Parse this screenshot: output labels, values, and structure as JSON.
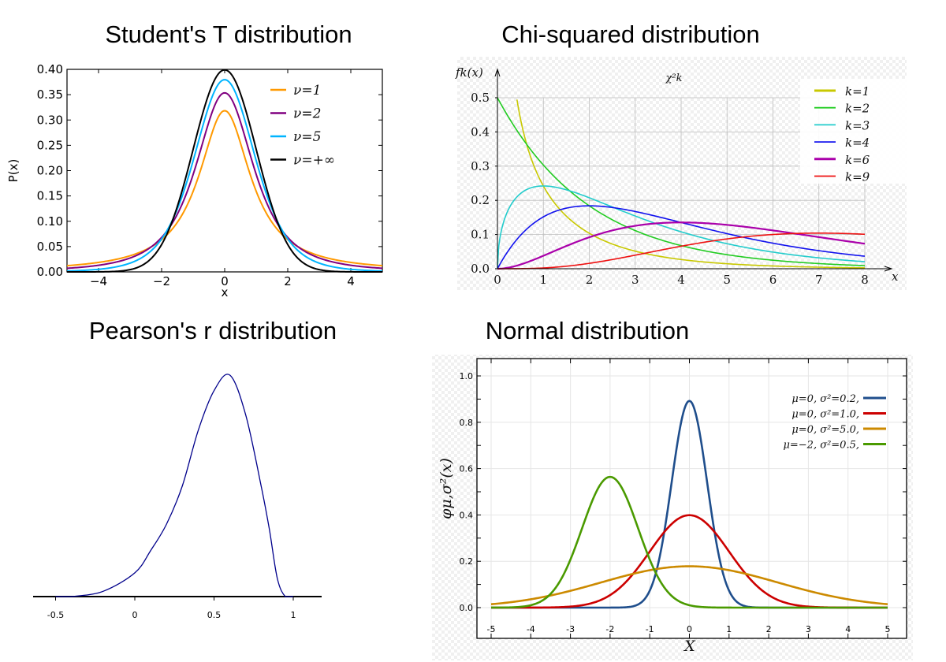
{
  "chart_data": [
    {
      "type": "line",
      "title": "Student's T distribution",
      "xlabel": "x",
      "ylabel": "P(x)",
      "xlim": [
        -5,
        5
      ],
      "ylim": [
        0,
        0.4
      ],
      "xticks": [
        "−4",
        "−2",
        "0",
        "2",
        "4"
      ],
      "yticks": [
        "0.00",
        "0.05",
        "0.10",
        "0.15",
        "0.20",
        "0.25",
        "0.30",
        "0.35",
        "0.40"
      ],
      "legend_position": "top-right",
      "series": [
        {
          "name": "ν=1",
          "nu": 1,
          "color": "#ff9900"
        },
        {
          "name": "ν=2",
          "nu": 2,
          "color": "#800080"
        },
        {
          "name": "ν=5",
          "nu": 5,
          "color": "#00b4ff"
        },
        {
          "name": "ν=+∞",
          "nu": "inf",
          "color": "#000000"
        }
      ]
    },
    {
      "type": "line",
      "title": "Chi-squared distribution",
      "inner_title": "χ²k",
      "xlabel": "x",
      "ylabel": "fk(x)",
      "xlim": [
        0,
        8
      ],
      "ylim": [
        0,
        0.5
      ],
      "xticks": [
        "0",
        "1",
        "2",
        "3",
        "4",
        "5",
        "6",
        "7",
        "8"
      ],
      "yticks": [
        "0.0",
        "0.1",
        "0.2",
        "0.3",
        "0.4",
        "0.5"
      ],
      "grid": true,
      "legend_position": "top-right",
      "series": [
        {
          "name": "k=1",
          "k": 1,
          "color": "#c8c800"
        },
        {
          "name": "k=2",
          "k": 2,
          "color": "#22cc22"
        },
        {
          "name": "k=3",
          "k": 3,
          "color": "#22cccc"
        },
        {
          "name": "k=4",
          "k": 4,
          "color": "#1111ee"
        },
        {
          "name": "k=6",
          "k": 6,
          "color": "#aa00aa"
        },
        {
          "name": "k=9",
          "k": 9,
          "color": "#ee1111"
        }
      ]
    },
    {
      "type": "line",
      "title": "Pearson's r distribution",
      "xlim": [
        -0.6,
        1.18
      ],
      "xticks": [
        "-0.5",
        "0",
        "0.5",
        "1"
      ],
      "color": "#00008b",
      "x": [
        -0.5,
        -0.4,
        -0.2,
        0,
        0.1,
        0.2,
        0.3,
        0.4,
        0.5,
        0.6,
        0.7,
        0.8,
        0.85,
        0.9,
        0.95,
        1.0
      ],
      "y_relative": [
        0,
        0,
        0.024,
        0.107,
        0.208,
        0.327,
        0.5,
        0.75,
        0.93,
        1.0,
        0.82,
        0.49,
        0.3,
        0.08,
        0,
        0
      ]
    },
    {
      "type": "line",
      "title": "Normal distribution",
      "xlabel": "X",
      "ylabel": "φμ,σ²(x)",
      "xlim": [
        -5,
        5
      ],
      "ylim": [
        0,
        1.0
      ],
      "xticks": [
        "-5",
        "-4",
        "-3",
        "-2",
        "-1",
        "0",
        "1",
        "2",
        "3",
        "4",
        "5"
      ],
      "yticks": [
        "0.0",
        "0.2",
        "0.4",
        "0.6",
        "0.8",
        "1.0"
      ],
      "grid": true,
      "legend_position": "top-right",
      "series": [
        {
          "name": "μ=0,   σ²=0.2,",
          "mu": 0,
          "sigma2": 0.2,
          "color": "#1f4e8c"
        },
        {
          "name": "μ=0,   σ²=1.0,",
          "mu": 0,
          "sigma2": 1.0,
          "color": "#cc0000"
        },
        {
          "name": "μ=0,   σ²=5.0,",
          "mu": 0,
          "sigma2": 5.0,
          "color": "#cc8a00"
        },
        {
          "name": "μ=−2, σ²=0.5,",
          "mu": -2,
          "sigma2": 0.5,
          "color": "#4a9a00"
        }
      ]
    }
  ]
}
